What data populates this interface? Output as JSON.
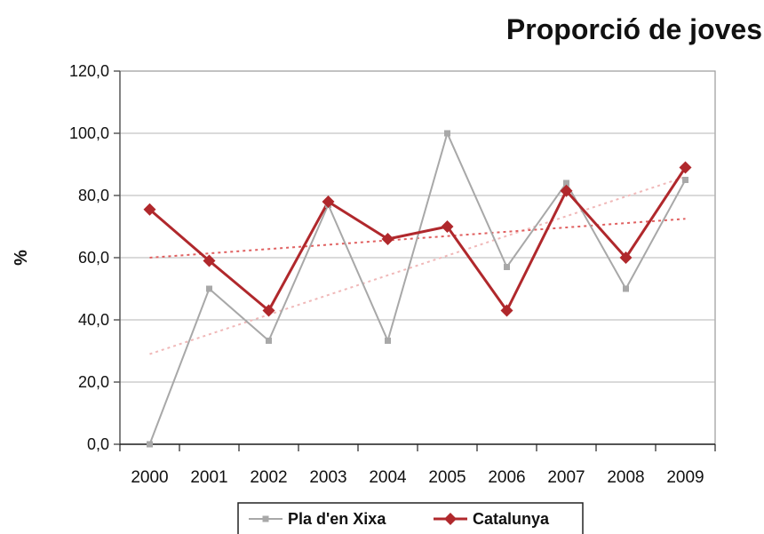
{
  "chart_data": {
    "type": "line",
    "title": "Proporció de joves",
    "xlabel": "",
    "ylabel": "%",
    "ylim": [
      0,
      120
    ],
    "yticks": [
      "0,0",
      "20,0",
      "40,0",
      "60,0",
      "80,0",
      "100,0",
      "120,0"
    ],
    "categories": [
      "2000",
      "2001",
      "2002",
      "2003",
      "2004",
      "2005",
      "2006",
      "2007",
      "2008",
      "2009"
    ],
    "grid": true,
    "legend_position": "bottom",
    "series": [
      {
        "name": "Pla d'en Xixa",
        "color": "#a8a8a8",
        "marker": "square",
        "values": [
          0,
          50,
          33.3,
          77,
          33.3,
          100,
          57,
          84,
          50,
          85
        ],
        "trendline": {
          "from": 29,
          "to": 86,
          "color": "#f0b8b8"
        }
      },
      {
        "name": "Catalunya",
        "color": "#b0282c",
        "marker": "diamond",
        "values": [
          75.5,
          59,
          43,
          78,
          66,
          70,
          43,
          81.5,
          60,
          89
        ],
        "trendline": {
          "from": 60,
          "to": 72.5,
          "color": "#e06060"
        }
      }
    ]
  }
}
